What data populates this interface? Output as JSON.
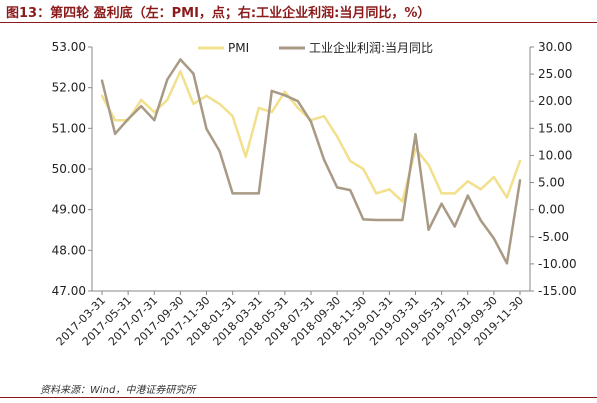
{
  "header": {
    "title": "图13：第四轮 盈利底（左：PMI，点；右:工业企业利润:当月同比，%）"
  },
  "footer": {
    "source": "资料来源：Wind，中港证券研究所"
  },
  "chart_data": {
    "type": "line",
    "x": [
      "2017-03-31",
      "2017-04-30",
      "2017-05-31",
      "2017-06-30",
      "2017-07-31",
      "2017-08-31",
      "2017-09-30",
      "2017-10-31",
      "2017-11-30",
      "2017-12-31",
      "2018-01-31",
      "2018-02-28",
      "2018-03-31",
      "2018-04-30",
      "2018-05-31",
      "2018-06-30",
      "2018-07-31",
      "2018-08-31",
      "2018-09-30",
      "2018-10-31",
      "2018-11-30",
      "2018-12-31",
      "2019-01-31",
      "2019-02-28",
      "2019-03-31",
      "2019-04-30",
      "2019-05-31",
      "2019-06-30",
      "2019-07-31",
      "2019-08-31",
      "2019-09-30",
      "2019-10-31",
      "2019-11-30"
    ],
    "x_tick_labels": [
      "2017-03-31",
      "2017-05-31",
      "2017-07-31",
      "2017-09-30",
      "2017-11-30",
      "2018-01-31",
      "2018-03-31",
      "2018-05-31",
      "2018-07-31",
      "2018-09-30",
      "2018-11-30",
      "2019-01-31",
      "2019-03-31",
      "2019-05-31",
      "2019-07-31",
      "2019-09-30",
      "2019-11-30"
    ],
    "series": [
      {
        "name": "PMI",
        "axis": "left",
        "color": "#f2e08c",
        "values": [
          51.8,
          51.2,
          51.2,
          51.7,
          51.4,
          51.7,
          52.4,
          51.6,
          51.8,
          51.6,
          51.3,
          50.3,
          51.5,
          51.4,
          51.9,
          51.5,
          51.2,
          51.3,
          50.8,
          50.2,
          50.0,
          49.4,
          49.5,
          49.2,
          50.5,
          50.1,
          49.4,
          49.4,
          49.7,
          49.5,
          49.8,
          49.3,
          50.2
        ]
      },
      {
        "name": "工业企业利润:当月同比",
        "axis": "right",
        "color": "#a89a84",
        "values": [
          23.8,
          14.0,
          16.7,
          19.1,
          16.5,
          24.0,
          27.7,
          25.1,
          14.9,
          10.8,
          3.0,
          3.0,
          3.0,
          21.9,
          21.1,
          20.0,
          16.2,
          9.2,
          4.1,
          3.6,
          -1.8,
          -1.9,
          -1.9,
          -1.9,
          13.9,
          -3.7,
          1.1,
          -3.1,
          2.6,
          -2.0,
          -5.3,
          -9.9,
          5.4
        ]
      }
    ],
    "left_axis": {
      "min": 47.0,
      "max": 53.0,
      "ticks": [
        "47.00",
        "48.00",
        "49.00",
        "50.00",
        "51.00",
        "52.00",
        "53.00"
      ]
    },
    "right_axis": {
      "min": -15.0,
      "max": 30.0,
      "ticks": [
        "-15.00",
        "-10.00",
        "-5.00",
        "0.00",
        "5.00",
        "10.00",
        "15.00",
        "20.00",
        "25.00",
        "30.00"
      ]
    },
    "grid": false,
    "legend": "top"
  }
}
